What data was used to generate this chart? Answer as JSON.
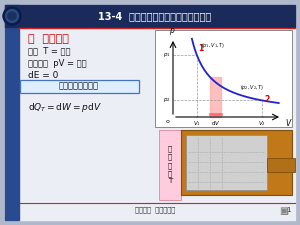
{
  "title": "13-4  理想气体的等温过程和绶热过程",
  "bg_outer": "#b0b8cc",
  "bg_slide": "#e8eaf0",
  "header_color": "#1a2a5a",
  "stripe_color": "#2a4a8a",
  "section_title": "一  等温过程",
  "section_color": "#cc0000",
  "line1": "特征  T = 常量",
  "line2": "过程方程  pV = 常量",
  "line3": "dE = 0",
  "box_text": "由热力学第一定律",
  "footer_text": "第十三章  热力学基础",
  "heater_label": "恒\n温\n热\n源\nT",
  "curve_color": "#2222cc",
  "fill_color": "#ffaaaa",
  "red_color": "#cc2222",
  "blue_color": "#4472c4",
  "brown_color": "#b8780a",
  "pink_bg": "#ffccdd",
  "gray_inner": "#d4d4d4",
  "white": "#ffffff",
  "black": "#111111"
}
